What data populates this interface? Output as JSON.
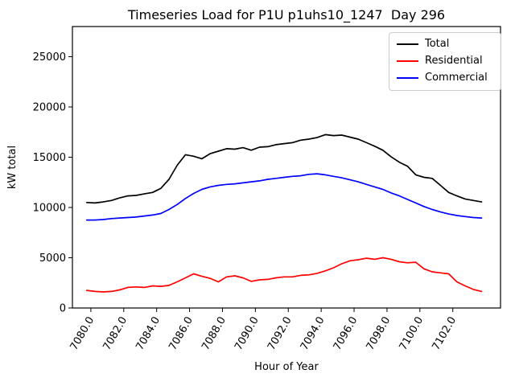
{
  "chart_data": {
    "type": "line",
    "title": "Timeseries Load for P1U p1uhs10_1247  Day 296",
    "xlabel": "Hour of Year",
    "ylabel": "kW total",
    "xlim": [
      7078.88,
      7104.9
    ],
    "ylim": [
      0,
      28000
    ],
    "yticks": [
      0,
      5000,
      10000,
      15000,
      20000,
      25000
    ],
    "ytick_labels": [
      "0",
      "5000",
      "10000",
      "15000",
      "20000",
      "25000"
    ],
    "xticks": [
      7080,
      7082,
      7084,
      7086,
      7088,
      7090,
      7092,
      7094,
      7096,
      7098,
      7100,
      7102
    ],
    "xtick_labels": [
      "7080.0",
      "7082.0",
      "7084.0",
      "7086.0",
      "7088.0",
      "7090.0",
      "7092.0",
      "7094.0",
      "7096.0",
      "7098.0",
      "7100.0",
      "7102.0"
    ],
    "xtick_rotation_deg": 60,
    "grid": false,
    "legend_position": "upper right",
    "x": [
      7079.75,
      7080.25,
      7080.75,
      7081.25,
      7081.75,
      7082.25,
      7082.75,
      7083.25,
      7083.75,
      7084.25,
      7084.75,
      7085.25,
      7085.75,
      7086.25,
      7086.75,
      7087.25,
      7087.75,
      7088.25,
      7088.75,
      7089.25,
      7089.75,
      7090.25,
      7090.75,
      7091.25,
      7091.75,
      7092.25,
      7092.75,
      7093.25,
      7093.75,
      7094.25,
      7094.75,
      7095.25,
      7095.75,
      7096.25,
      7096.75,
      7097.25,
      7097.75,
      7098.25,
      7098.75,
      7099.25,
      7099.75,
      7100.25,
      7100.75,
      7101.25,
      7101.75,
      7102.25,
      7102.75,
      7103.25,
      7103.75
    ],
    "series": [
      {
        "name": "Total",
        "color": "#000000",
        "values": [
          10500,
          10450,
          10550,
          10700,
          10950,
          11150,
          11200,
          11350,
          11500,
          11900,
          12800,
          14200,
          15250,
          15100,
          14850,
          15350,
          15600,
          15850,
          15800,
          15950,
          15700,
          16000,
          16050,
          16250,
          16350,
          16450,
          16700,
          16800,
          16950,
          17250,
          17150,
          17200,
          17000,
          16800,
          16450,
          16100,
          15700,
          15050,
          14500,
          14100,
          13250,
          13000,
          12900,
          12200,
          11500,
          11150,
          10850,
          10700,
          10550
        ]
      },
      {
        "name": "Residential",
        "color": "#ff0000",
        "values": [
          1750,
          1650,
          1600,
          1650,
          1800,
          2050,
          2100,
          2050,
          2200,
          2150,
          2250,
          2600,
          3000,
          3400,
          3150,
          2950,
          2600,
          3100,
          3200,
          3000,
          2650,
          2800,
          2850,
          3000,
          3100,
          3100,
          3250,
          3300,
          3450,
          3700,
          4000,
          4400,
          4700,
          4800,
          4950,
          4850,
          5000,
          4850,
          4600,
          4500,
          4550,
          3900,
          3600,
          3500,
          3400,
          2600,
          2200,
          1850,
          1650
        ]
      },
      {
        "name": "Commercial",
        "color": "#0000ff",
        "values": [
          8750,
          8750,
          8800,
          8900,
          8950,
          9000,
          9050,
          9150,
          9250,
          9400,
          9800,
          10300,
          10900,
          11400,
          11800,
          12050,
          12200,
          12300,
          12350,
          12450,
          12550,
          12650,
          12800,
          12900,
          13000,
          13100,
          13150,
          13300,
          13350,
          13250,
          13100,
          12950,
          12750,
          12550,
          12300,
          12050,
          11800,
          11450,
          11150,
          10800,
          10450,
          10100,
          9800,
          9550,
          9350,
          9200,
          9100,
          9000,
          8950
        ]
      }
    ]
  }
}
